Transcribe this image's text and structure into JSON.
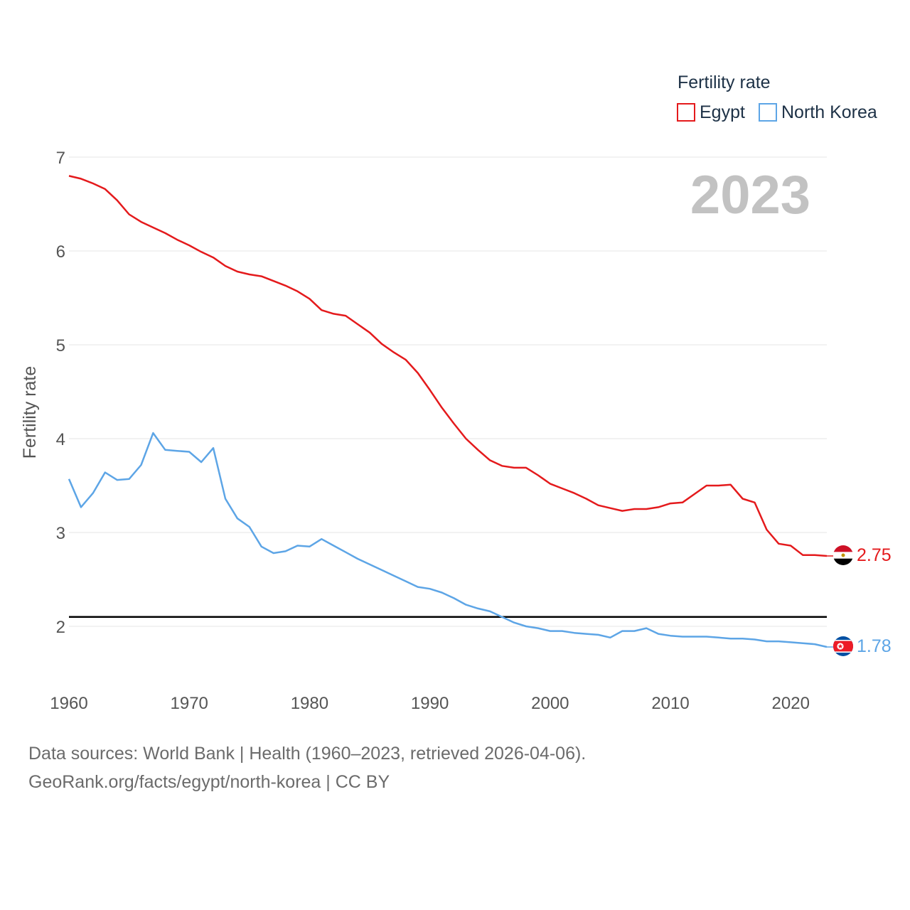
{
  "legend": {
    "title": "Fertility rate",
    "items": [
      {
        "label": "Egypt",
        "color": "#e41a1c"
      },
      {
        "label": "North Korea",
        "color": "#5da5e6"
      }
    ]
  },
  "year_stamp": "2023",
  "footer": {
    "line1": "Data sources: World Bank | Health (1960–2023, retrieved 2026-04-06).",
    "line2": "GeoRank.org/facts/egypt/north-korea | CC BY"
  },
  "colors": {
    "egypt": "#e41a1c",
    "north_korea": "#5da5e6",
    "reference_line": "#000000",
    "grid": "#e6e6e6",
    "year_stamp": "#c2c2c2"
  },
  "chart_data": {
    "type": "line",
    "title": "Fertility rate",
    "xlabel": "",
    "ylabel": "Fertility rate",
    "xlim": [
      1960,
      2023
    ],
    "ylim": [
      1.5,
      7
    ],
    "x_ticks": [
      1960,
      1970,
      1980,
      1990,
      2000,
      2010,
      2020
    ],
    "y_ticks": [
      2,
      3,
      4,
      5,
      6,
      7
    ],
    "grid": true,
    "legend_position": "top-right",
    "reference_line": {
      "y": 2.1,
      "color": "#000000"
    },
    "x": [
      1960,
      1961,
      1962,
      1963,
      1964,
      1965,
      1966,
      1967,
      1968,
      1969,
      1970,
      1971,
      1972,
      1973,
      1974,
      1975,
      1976,
      1977,
      1978,
      1979,
      1980,
      1981,
      1982,
      1983,
      1984,
      1985,
      1986,
      1987,
      1988,
      1989,
      1990,
      1991,
      1992,
      1993,
      1994,
      1995,
      1996,
      1997,
      1998,
      1999,
      2000,
      2001,
      2002,
      2003,
      2004,
      2005,
      2006,
      2007,
      2008,
      2009,
      2010,
      2011,
      2012,
      2013,
      2014,
      2015,
      2016,
      2017,
      2018,
      2019,
      2020,
      2021,
      2022,
      2023
    ],
    "series": [
      {
        "name": "Egypt",
        "color": "#e41a1c",
        "end_label": "2.75",
        "values": [
          6.8,
          6.77,
          6.72,
          6.66,
          6.54,
          6.39,
          6.31,
          6.25,
          6.19,
          6.12,
          6.06,
          5.99,
          5.93,
          5.84,
          5.78,
          5.75,
          5.73,
          5.68,
          5.63,
          5.57,
          5.49,
          5.37,
          5.33,
          5.31,
          5.22,
          5.13,
          5.01,
          4.92,
          4.84,
          4.7,
          4.52,
          4.33,
          4.16,
          4.0,
          3.88,
          3.77,
          3.71,
          3.69,
          3.69,
          3.61,
          3.52,
          3.47,
          3.42,
          3.36,
          3.29,
          3.26,
          3.23,
          3.25,
          3.25,
          3.27,
          3.31,
          3.32,
          3.41,
          3.5,
          3.5,
          3.51,
          3.36,
          3.32,
          3.03,
          2.88,
          2.86,
          2.76,
          2.76,
          2.75
        ]
      },
      {
        "name": "North Korea",
        "color": "#5da5e6",
        "end_label": "1.78",
        "values": [
          3.57,
          3.27,
          3.42,
          3.64,
          3.56,
          3.57,
          3.72,
          4.06,
          3.88,
          3.87,
          3.86,
          3.75,
          3.9,
          3.36,
          3.15,
          3.06,
          2.85,
          2.78,
          2.8,
          2.86,
          2.85,
          2.93,
          2.86,
          2.79,
          2.72,
          2.66,
          2.6,
          2.54,
          2.48,
          2.42,
          2.4,
          2.36,
          2.3,
          2.23,
          2.19,
          2.16,
          2.1,
          2.04,
          2.0,
          1.98,
          1.95,
          1.95,
          1.93,
          1.92,
          1.91,
          1.88,
          1.95,
          1.95,
          1.98,
          1.92,
          1.9,
          1.89,
          1.89,
          1.89,
          1.88,
          1.87,
          1.87,
          1.86,
          1.84,
          1.84,
          1.83,
          1.82,
          1.81,
          1.78
        ]
      }
    ]
  }
}
